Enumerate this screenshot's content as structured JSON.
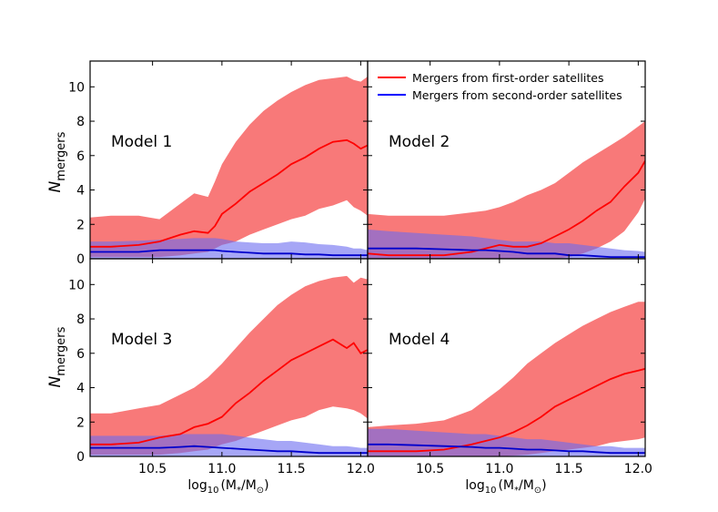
{
  "figure": {
    "ylabel": "N",
    "ylabel_sub": "mergers",
    "xlabel_prefix": "log",
    "xlabel_sub": "10",
    "xlabel_expr": "(M",
    "xlabel_sub2": "*",
    "xlabel_mid": "/M",
    "xlabel_sub3": "⊙",
    "xlabel_close": ")"
  },
  "legend": {
    "items": [
      {
        "label": "Mergers from first-order satellites",
        "color": "#ff0000"
      },
      {
        "label": "Mergers from second-order satellites",
        "color": "#0000ff"
      }
    ]
  },
  "colors": {
    "first_fill": "#f87272",
    "second_fill": "#6b6bf0",
    "first_line": "#ff0000",
    "second_line": "#0000cc"
  },
  "chart_data": [
    {
      "type": "area",
      "title": "Model 1",
      "xlim": [
        10.05,
        12.05
      ],
      "ylim": [
        0,
        11.5
      ],
      "xticks": [
        10.5,
        11.0,
        11.5,
        12.0
      ],
      "xtick_labels": [
        "10.5",
        "11.0",
        "11.5",
        "12.0"
      ],
      "yticks": [
        0,
        2,
        4,
        6,
        8,
        10
      ],
      "x": [
        10.05,
        10.2,
        10.4,
        10.55,
        10.7,
        10.8,
        10.9,
        10.95,
        11.0,
        11.1,
        11.2,
        11.3,
        11.4,
        11.5,
        11.6,
        11.7,
        11.8,
        11.9,
        11.95,
        12.0,
        12.05
      ],
      "series": [
        {
          "name": "Mergers from first-order satellites",
          "values": [
            0.7,
            0.7,
            0.8,
            1.0,
            1.4,
            1.6,
            1.5,
            1.9,
            2.6,
            3.2,
            3.9,
            4.4,
            4.9,
            5.5,
            5.9,
            6.4,
            6.8,
            6.9,
            6.7,
            6.4,
            6.6
          ],
          "upper": [
            2.4,
            2.5,
            2.5,
            2.3,
            3.2,
            3.8,
            3.6,
            4.5,
            5.5,
            6.8,
            7.8,
            8.6,
            9.2,
            9.7,
            10.1,
            10.4,
            10.5,
            10.6,
            10.4,
            10.3,
            10.6
          ],
          "lower": [
            0.1,
            0.1,
            0.1,
            0.1,
            0.2,
            0.3,
            0.4,
            0.6,
            0.8,
            1.0,
            1.4,
            1.7,
            2.0,
            2.3,
            2.5,
            2.9,
            3.1,
            3.4,
            3.0,
            2.8,
            2.5
          ]
        },
        {
          "name": "Mergers from second-order satellites",
          "values": [
            0.4,
            0.4,
            0.4,
            0.5,
            0.5,
            0.5,
            0.5,
            0.5,
            0.45,
            0.4,
            0.35,
            0.3,
            0.3,
            0.3,
            0.25,
            0.25,
            0.2,
            0.2,
            0.2,
            0.2,
            0.2
          ],
          "upper": [
            1.0,
            1.0,
            1.05,
            1.1,
            1.15,
            1.2,
            1.2,
            1.2,
            1.15,
            1.0,
            0.95,
            0.9,
            0.9,
            1.0,
            0.95,
            0.85,
            0.8,
            0.7,
            0.6,
            0.6,
            0.5
          ],
          "lower": [
            0,
            0,
            0,
            0,
            0,
            0,
            0,
            0,
            0,
            0,
            0,
            0,
            0,
            0,
            0,
            0,
            0,
            0,
            0,
            0,
            0
          ]
        }
      ]
    },
    {
      "type": "area",
      "title": "Model 2",
      "xlim": [
        10.05,
        12.05
      ],
      "ylim": [
        0,
        11.5
      ],
      "xticks": [
        10.5,
        11.0,
        11.5,
        12.0
      ],
      "xtick_labels": [
        "10.5",
        "11.0",
        "11.5",
        "12.0"
      ],
      "yticks": [
        0,
        2,
        4,
        6,
        8,
        10
      ],
      "x": [
        10.05,
        10.2,
        10.4,
        10.6,
        10.8,
        10.9,
        11.0,
        11.1,
        11.2,
        11.3,
        11.4,
        11.5,
        11.6,
        11.7,
        11.8,
        11.9,
        12.0,
        12.05
      ],
      "series": [
        {
          "name": "Mergers from first-order satellites",
          "values": [
            0.3,
            0.2,
            0.2,
            0.2,
            0.4,
            0.6,
            0.8,
            0.7,
            0.7,
            0.9,
            1.3,
            1.7,
            2.2,
            2.8,
            3.3,
            4.2,
            5.0,
            5.7
          ],
          "upper": [
            2.6,
            2.5,
            2.5,
            2.5,
            2.7,
            2.8,
            3.0,
            3.3,
            3.7,
            4.0,
            4.4,
            5.0,
            5.6,
            6.1,
            6.6,
            7.1,
            7.7,
            8.0
          ],
          "lower": [
            0,
            0,
            0,
            0,
            0,
            0,
            0,
            0,
            0,
            0,
            0,
            0.1,
            0.3,
            0.6,
            1.0,
            1.6,
            2.7,
            3.5
          ]
        },
        {
          "name": "Mergers from second-order satellites",
          "values": [
            0.6,
            0.6,
            0.6,
            0.55,
            0.5,
            0.5,
            0.45,
            0.4,
            0.3,
            0.3,
            0.3,
            0.2,
            0.2,
            0.15,
            0.1,
            0.1,
            0.1,
            0.1
          ],
          "upper": [
            1.7,
            1.6,
            1.5,
            1.4,
            1.3,
            1.2,
            1.1,
            1.0,
            1.0,
            1.0,
            0.9,
            0.9,
            0.8,
            0.7,
            0.6,
            0.5,
            0.45,
            0.4
          ],
          "lower": [
            0,
            0,
            0,
            0,
            0,
            0,
            0,
            0,
            0,
            0,
            0,
            0,
            0,
            0,
            0,
            0,
            0,
            0
          ]
        }
      ]
    },
    {
      "type": "area",
      "title": "Model 3",
      "xlim": [
        10.05,
        12.05
      ],
      "ylim": [
        0,
        11.5
      ],
      "xticks": [
        10.5,
        11.0,
        11.5,
        12.0
      ],
      "xtick_labels": [
        "10.5",
        "11.0",
        "11.5",
        "12.0"
      ],
      "yticks": [
        0,
        2,
        4,
        6,
        8,
        10
      ],
      "x": [
        10.05,
        10.2,
        10.4,
        10.55,
        10.7,
        10.8,
        10.9,
        11.0,
        11.1,
        11.2,
        11.3,
        11.4,
        11.5,
        11.6,
        11.7,
        11.8,
        11.9,
        11.95,
        12.0,
        12.05
      ],
      "series": [
        {
          "name": "Mergers from first-order satellites",
          "values": [
            0.7,
            0.7,
            0.8,
            1.1,
            1.3,
            1.7,
            1.9,
            2.3,
            3.1,
            3.7,
            4.4,
            5.0,
            5.6,
            6.0,
            6.4,
            6.8,
            6.3,
            6.6,
            6.0,
            6.2
          ],
          "upper": [
            2.5,
            2.5,
            2.8,
            3.0,
            3.6,
            4.0,
            4.6,
            5.4,
            6.3,
            7.2,
            8.0,
            8.8,
            9.4,
            9.9,
            10.2,
            10.4,
            10.5,
            10.1,
            10.4,
            10.3
          ],
          "lower": [
            0.1,
            0.1,
            0.1,
            0.1,
            0.2,
            0.3,
            0.4,
            0.7,
            0.9,
            1.2,
            1.5,
            1.8,
            2.1,
            2.3,
            2.7,
            2.9,
            2.8,
            2.7,
            2.5,
            2.2
          ]
        },
        {
          "name": "Mergers from second-order satellites",
          "values": [
            0.5,
            0.5,
            0.5,
            0.5,
            0.55,
            0.6,
            0.55,
            0.5,
            0.45,
            0.4,
            0.35,
            0.3,
            0.3,
            0.25,
            0.2,
            0.2,
            0.2,
            0.2,
            0.2,
            0.2
          ],
          "upper": [
            1.2,
            1.2,
            1.2,
            1.2,
            1.3,
            1.3,
            1.3,
            1.3,
            1.2,
            1.1,
            1.0,
            0.9,
            0.9,
            0.8,
            0.7,
            0.6,
            0.6,
            0.55,
            0.5,
            0.5
          ],
          "lower": [
            0,
            0,
            0,
            0,
            0,
            0,
            0,
            0,
            0,
            0,
            0,
            0,
            0,
            0,
            0,
            0,
            0,
            0,
            0,
            0
          ]
        }
      ]
    },
    {
      "type": "area",
      "title": "Model 4",
      "xlim": [
        10.05,
        12.05
      ],
      "ylim": [
        0,
        11.5
      ],
      "xticks": [
        10.5,
        11.0,
        11.5,
        12.0
      ],
      "xtick_labels": [
        "10.5",
        "11.0",
        "11.5",
        "12.0"
      ],
      "yticks": [
        0,
        2,
        4,
        6,
        8,
        10
      ],
      "x": [
        10.05,
        10.2,
        10.4,
        10.6,
        10.8,
        10.9,
        11.0,
        11.1,
        11.2,
        11.3,
        11.4,
        11.5,
        11.6,
        11.7,
        11.8,
        11.9,
        12.0,
        12.05
      ],
      "series": [
        {
          "name": "Mergers from first-order satellites",
          "values": [
            0.3,
            0.3,
            0.3,
            0.4,
            0.7,
            0.9,
            1.1,
            1.4,
            1.8,
            2.3,
            2.9,
            3.3,
            3.7,
            4.1,
            4.5,
            4.8,
            5.0,
            5.1
          ],
          "upper": [
            1.7,
            1.8,
            1.9,
            2.1,
            2.7,
            3.3,
            3.9,
            4.6,
            5.4,
            6.0,
            6.6,
            7.1,
            7.6,
            8.0,
            8.4,
            8.7,
            9.0,
            9.0
          ],
          "lower": [
            0,
            0,
            0,
            0,
            0,
            0,
            0,
            0.05,
            0.1,
            0.2,
            0.3,
            0.4,
            0.5,
            0.6,
            0.8,
            0.9,
            1.0,
            1.1
          ]
        },
        {
          "name": "Mergers from second-order satellites",
          "values": [
            0.7,
            0.7,
            0.65,
            0.6,
            0.55,
            0.5,
            0.5,
            0.45,
            0.4,
            0.4,
            0.35,
            0.3,
            0.3,
            0.25,
            0.2,
            0.2,
            0.2,
            0.2
          ],
          "upper": [
            1.6,
            1.6,
            1.5,
            1.4,
            1.3,
            1.3,
            1.2,
            1.1,
            1.0,
            1.0,
            0.9,
            0.8,
            0.7,
            0.6,
            0.6,
            0.5,
            0.5,
            0.5
          ],
          "lower": [
            0,
            0,
            0,
            0,
            0,
            0,
            0,
            0,
            0,
            0,
            0,
            0,
            0,
            0,
            0,
            0,
            0,
            0
          ]
        }
      ]
    }
  ]
}
